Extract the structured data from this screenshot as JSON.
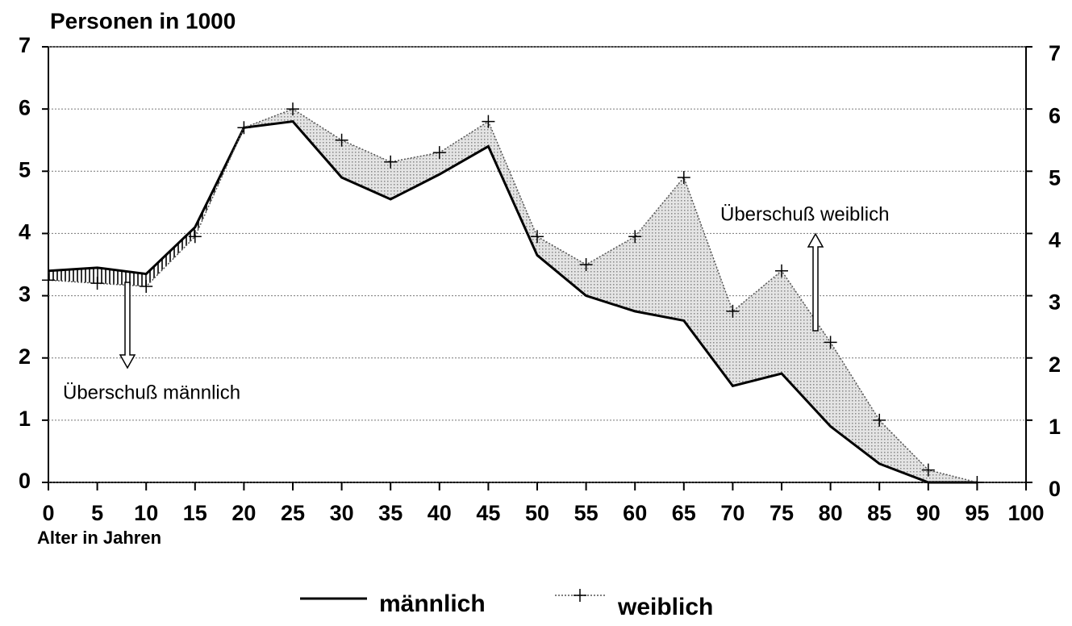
{
  "chart_data": {
    "type": "line",
    "title": "Personen in 1000",
    "x_label": "Alter in Jahren",
    "x": [
      0,
      5,
      10,
      15,
      20,
      25,
      30,
      35,
      40,
      45,
      50,
      55,
      60,
      65,
      70,
      75,
      80,
      85,
      90,
      95
    ],
    "series": [
      {
        "name": "männlich",
        "color": "#000000",
        "values": [
          3.4,
          3.45,
          3.35,
          4.1,
          5.7,
          5.8,
          4.9,
          4.55,
          4.95,
          5.4,
          3.65,
          3.0,
          2.75,
          2.6,
          1.55,
          1.75,
          0.9,
          0.3,
          0.0,
          0.0
        ]
      },
      {
        "name": "weiblich",
        "color": "#555555",
        "values": [
          3.25,
          3.2,
          3.15,
          3.95,
          5.7,
          6.0,
          5.5,
          5.15,
          5.3,
          5.8,
          3.95,
          3.5,
          3.95,
          4.9,
          2.75,
          3.4,
          2.25,
          1.0,
          0.2,
          0.0
        ]
      }
    ],
    "annotations": [
      "Überschuß weiblich",
      "Überschuß männlich"
    ],
    "xlim": [
      0,
      100
    ],
    "xticks": [
      0,
      5,
      10,
      15,
      20,
      25,
      30,
      35,
      40,
      45,
      50,
      55,
      60,
      65,
      70,
      75,
      80,
      85,
      90,
      95,
      100
    ],
    "ylim": [
      0,
      7
    ],
    "yticks": [
      0,
      1,
      2,
      3,
      4,
      5,
      6,
      7
    ],
    "y2lim": [
      0,
      7
    ],
    "y2ticks": [
      0,
      1,
      2,
      3,
      4,
      5,
      6,
      7
    ],
    "grid": true,
    "legend": "bottom"
  }
}
